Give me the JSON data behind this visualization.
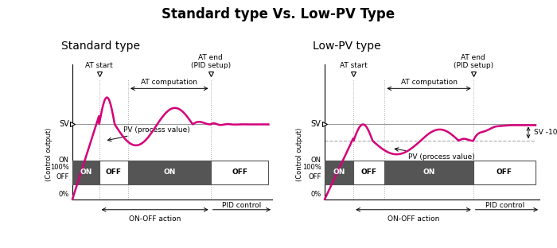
{
  "title": "Standard type Vs. Low-PV Type",
  "title_fontsize": 12,
  "subtitle_left": "Standard type",
  "subtitle_right": "Low-PV type",
  "subtitle_fontsize": 10,
  "curve_color": "#d4007a",
  "sv_line_color": "#999999",
  "dashed_color": "#aaaaaa",
  "box_dark": "#555555",
  "background": "#ffffff",
  "text_color": "#222222"
}
